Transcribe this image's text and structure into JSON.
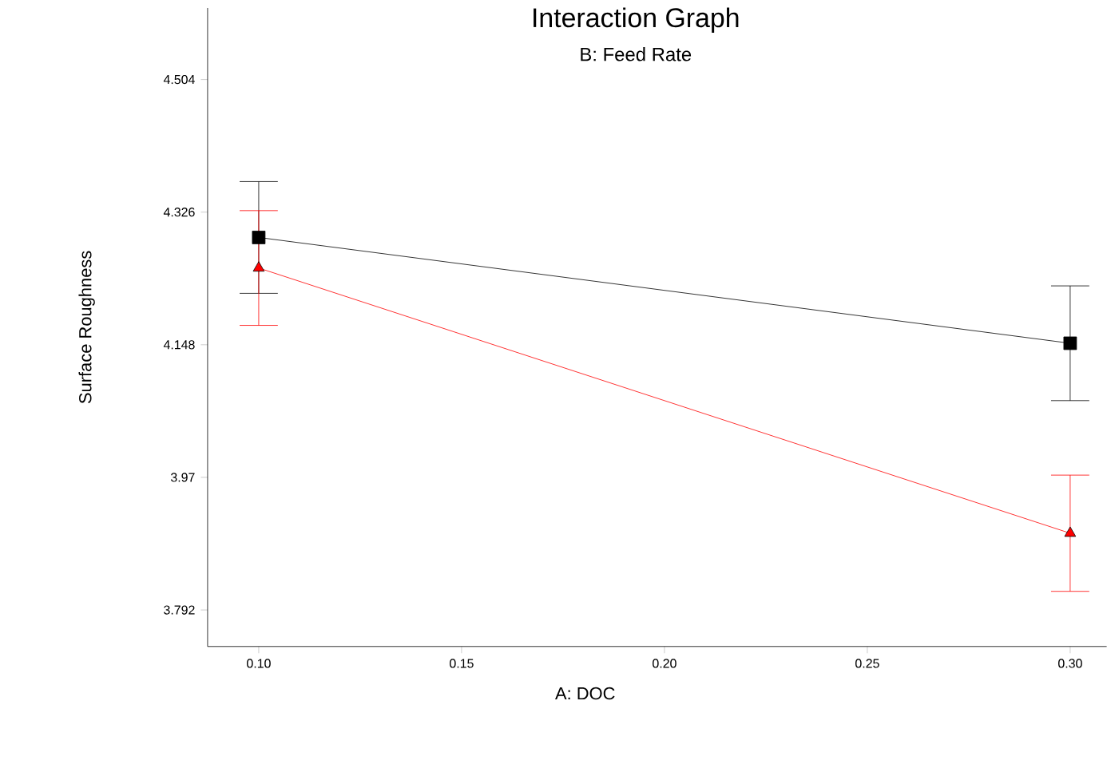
{
  "chart_data": {
    "type": "line",
    "title": "Interaction Graph",
    "subtitle": "B: Feed Rate",
    "xlabel": "A: DOC",
    "ylabel": "Surface Roughness",
    "x": [
      0.1,
      0.3
    ],
    "series": [
      {
        "color": "#000000",
        "values": [
          4.292,
          4.15
        ],
        "errors": [
          0.075,
          0.077
        ],
        "marker": "square"
      },
      {
        "color": "#ff0000",
        "values": [
          4.251,
          3.895
        ],
        "errors": [
          0.077,
          0.078
        ],
        "marker": "triangle"
      }
    ],
    "xlim": [
      0.0874,
      0.309
    ],
    "ylim": [
      3.743,
      4.6
    ],
    "xticks": [
      {
        "value": 0.1,
        "label": "0.10"
      },
      {
        "value": 0.15,
        "label": "0.15"
      },
      {
        "value": 0.2,
        "label": "0.20"
      },
      {
        "value": 0.25,
        "label": "0.25"
      },
      {
        "value": 0.3,
        "label": "0.30"
      }
    ],
    "yticks": [
      3.792,
      3.97,
      4.148,
      4.326,
      4.504
    ],
    "grid": false,
    "line_style": "solid"
  }
}
